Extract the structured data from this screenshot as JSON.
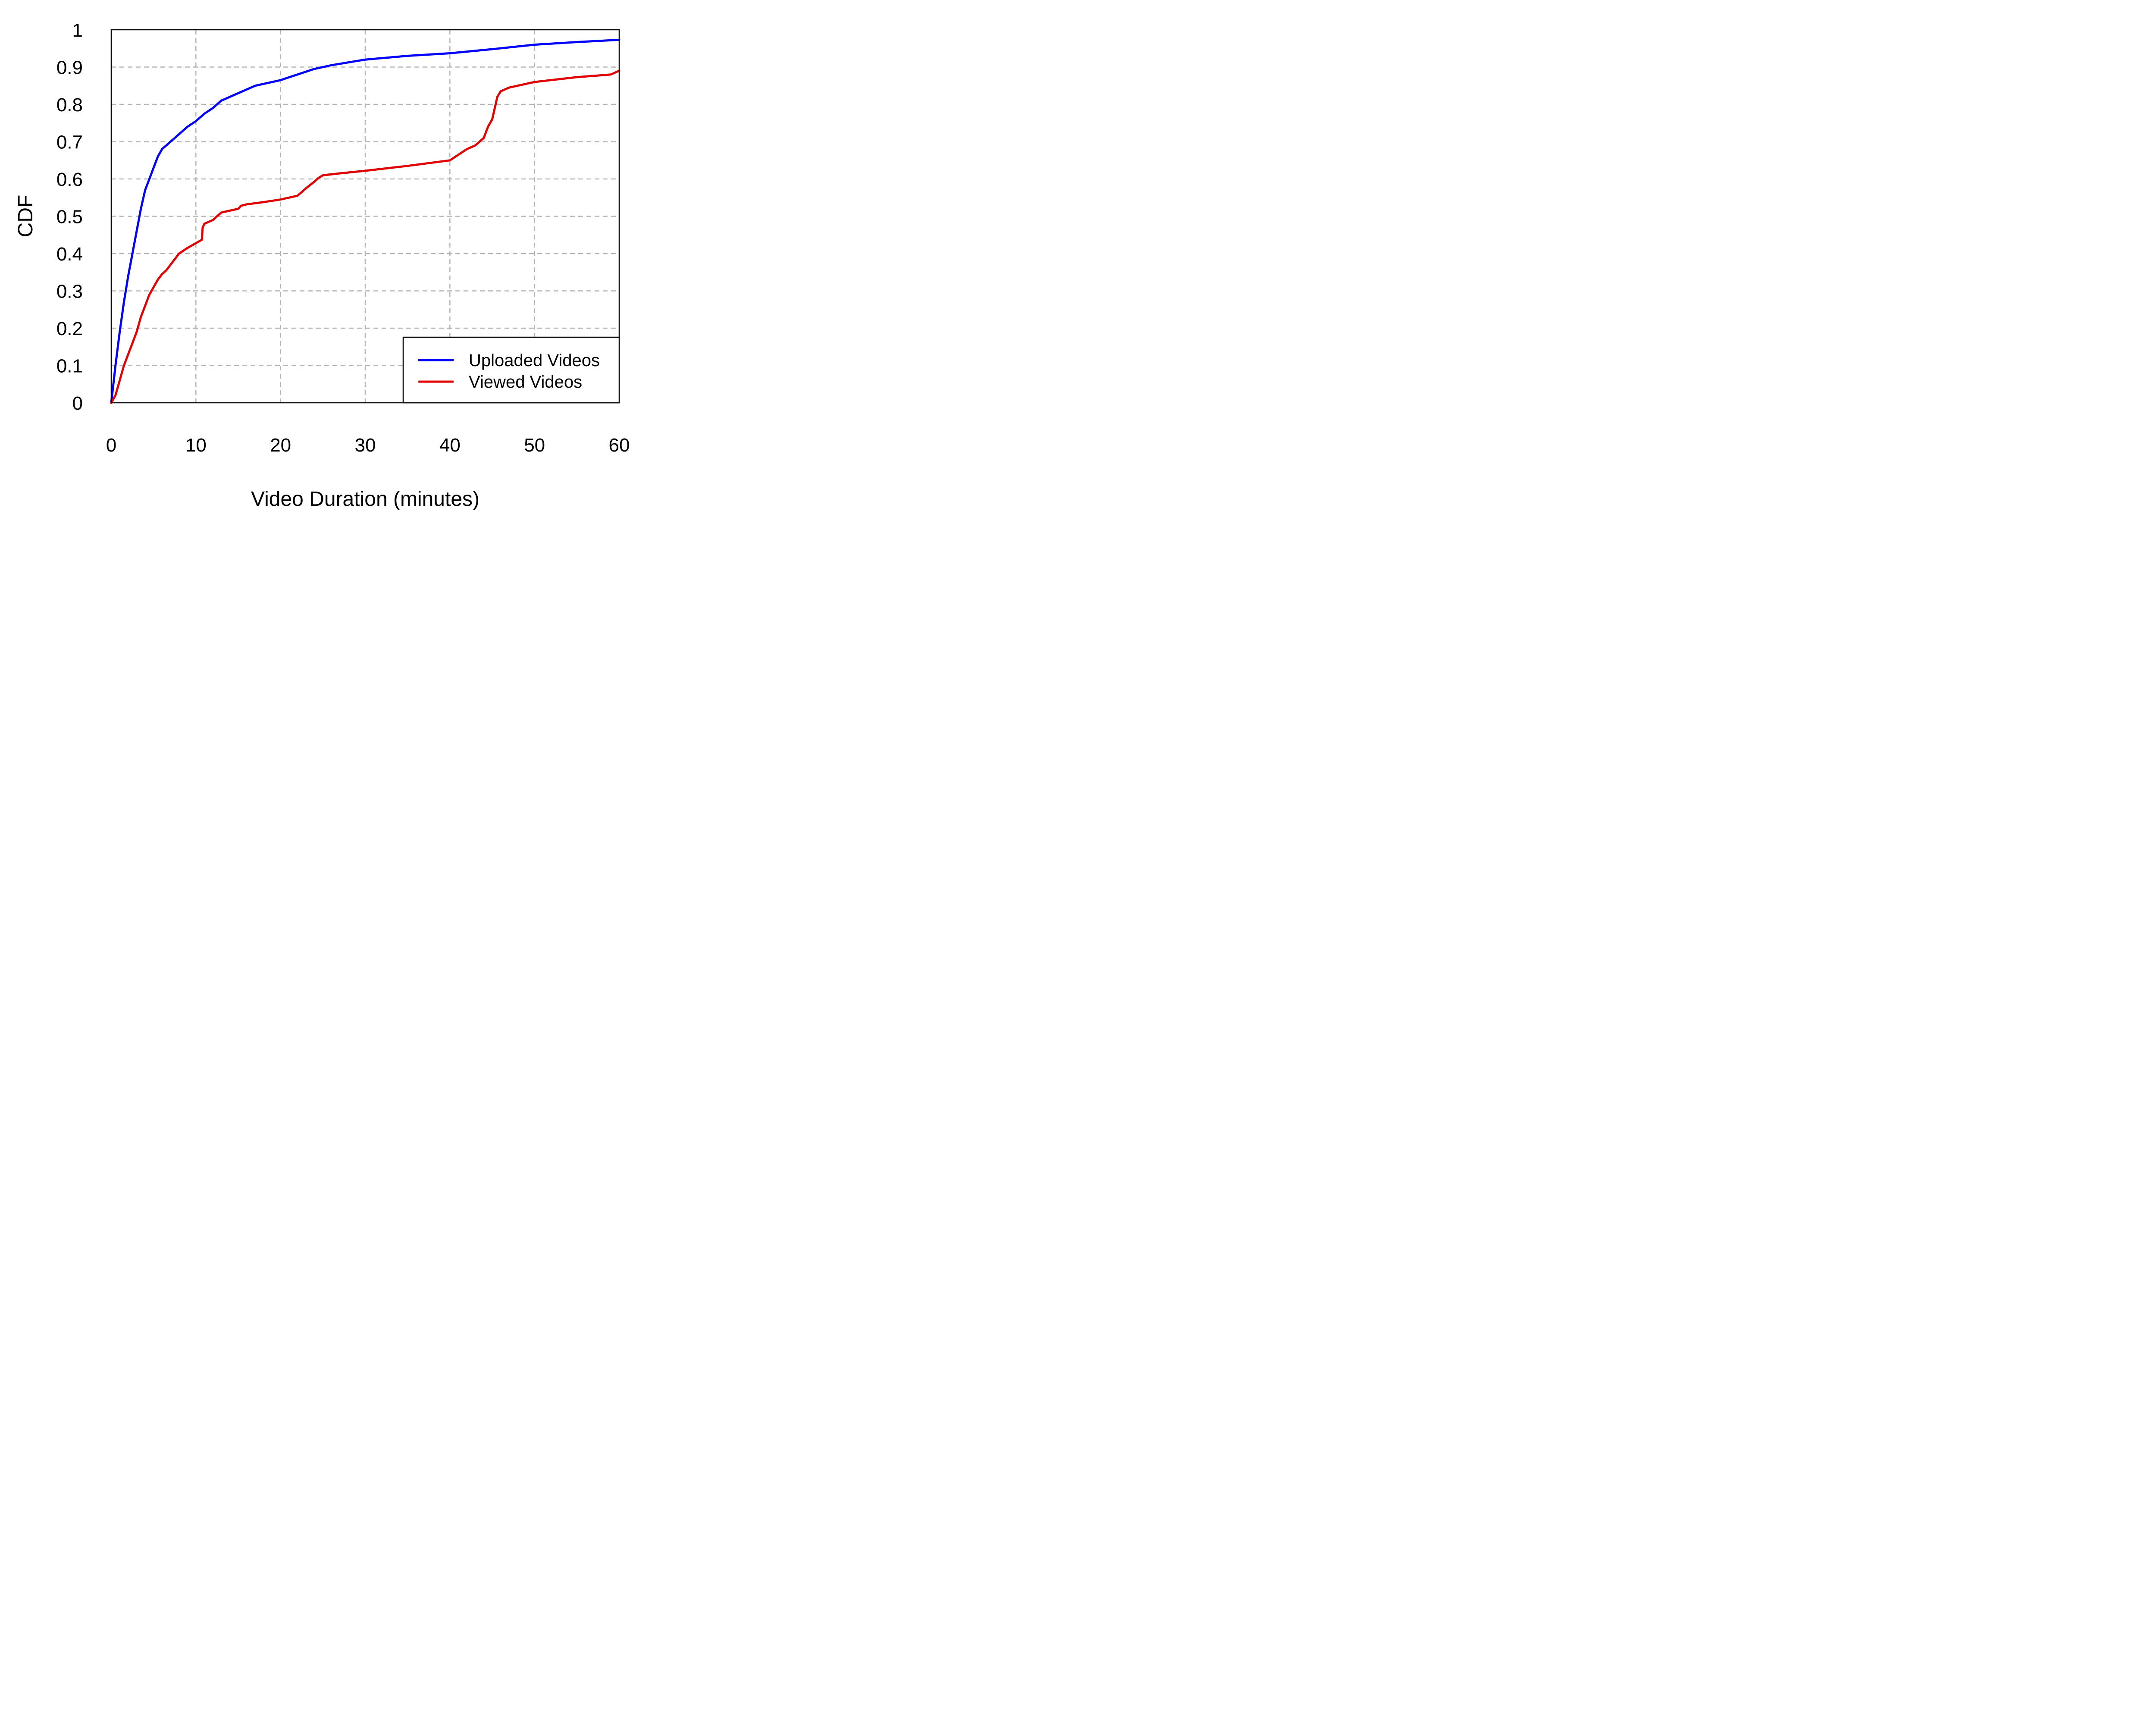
{
  "chart_data": {
    "type": "line",
    "xlabel": "Video Duration (minutes)",
    "ylabel": "CDF",
    "xlim": [
      0,
      60
    ],
    "ylim": [
      0,
      1
    ],
    "xticks": [
      "0",
      "10",
      "20",
      "30",
      "40",
      "50",
      "60"
    ],
    "yticks": [
      "0",
      "0.1",
      "0.2",
      "0.3",
      "0.4",
      "0.5",
      "0.6",
      "0.7",
      "0.8",
      "0.9",
      "1"
    ],
    "grid": true,
    "legend_position": "bottom-right",
    "series": [
      {
        "name": "Uploaded Videos",
        "color": "#0000ff",
        "x": [
          0,
          0.5,
          1,
          1.5,
          2,
          2.5,
          3,
          3.5,
          4,
          4.5,
          5,
          5.5,
          6,
          7,
          8,
          9,
          10,
          11,
          12,
          13,
          15,
          17,
          20,
          22,
          24,
          26,
          30,
          35,
          40,
          45,
          50,
          55,
          60
        ],
        "y": [
          0,
          0.1,
          0.19,
          0.27,
          0.34,
          0.4,
          0.46,
          0.52,
          0.57,
          0.6,
          0.63,
          0.66,
          0.68,
          0.7,
          0.72,
          0.74,
          0.755,
          0.775,
          0.79,
          0.81,
          0.83,
          0.85,
          0.865,
          0.88,
          0.895,
          0.905,
          0.92,
          0.93,
          0.937,
          0.948,
          0.96,
          0.967,
          0.973
        ]
      },
      {
        "name": "Viewed Videos",
        "color": "#e00000",
        "x": [
          0,
          0.5,
          1,
          1.5,
          2,
          2.5,
          3,
          3.5,
          4,
          4.5,
          5,
          5.5,
          6,
          6.5,
          7,
          7.5,
          8,
          9,
          10,
          10.7,
          10.8,
          11,
          12,
          12.5,
          13,
          14,
          15,
          15.3,
          16,
          18,
          20,
          22,
          23,
          24,
          24.5,
          25,
          27,
          30,
          35,
          40,
          41,
          42,
          43,
          44,
          44.5,
          45,
          45.3,
          45.6,
          46,
          47,
          50,
          55,
          59,
          60
        ],
        "y": [
          0,
          0.02,
          0.06,
          0.1,
          0.13,
          0.16,
          0.19,
          0.23,
          0.26,
          0.29,
          0.31,
          0.33,
          0.345,
          0.355,
          0.37,
          0.385,
          0.4,
          0.415,
          0.428,
          0.437,
          0.47,
          0.48,
          0.49,
          0.5,
          0.51,
          0.515,
          0.52,
          0.528,
          0.532,
          0.538,
          0.545,
          0.555,
          0.575,
          0.593,
          0.603,
          0.61,
          0.615,
          0.622,
          0.635,
          0.65,
          0.665,
          0.68,
          0.69,
          0.71,
          0.74,
          0.76,
          0.79,
          0.82,
          0.835,
          0.845,
          0.86,
          0.873,
          0.88,
          0.89
        ]
      }
    ]
  }
}
